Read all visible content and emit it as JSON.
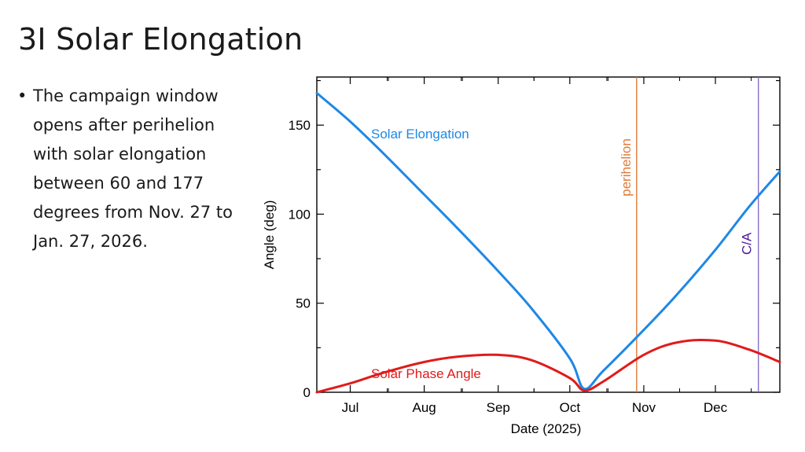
{
  "slide": {
    "title": "3I Solar Elongation",
    "bullets": [
      "The campaign window opens after perihelion with solar elongation between 60 and 177 degrees from Nov. 27 to Jan. 27, 2026."
    ]
  },
  "colors": {
    "elongation": "#1e88e5",
    "phase": "#e01b1b",
    "perihelion": "#e07b39",
    "ca": "#8a6cc9",
    "ca_label": "#4b1b9a",
    "axis": "#000000"
  },
  "chart_data": {
    "type": "line",
    "title": "",
    "xlabel": "Date (2025)",
    "ylabel": "Angle (deg)",
    "ylim": [
      0,
      177
    ],
    "xlim": [
      "2025-06-17",
      "2025-12-28"
    ],
    "x_tick_labels": [
      "Jul",
      "Aug",
      "Sep",
      "Oct",
      "Nov",
      "Dec"
    ],
    "x_tick_dates": [
      "2025-07-01",
      "2025-08-01",
      "2025-09-01",
      "2025-10-01",
      "2025-11-01",
      "2025-12-01"
    ],
    "y_ticks": [
      0,
      50,
      100,
      150
    ],
    "grid": false,
    "series": [
      {
        "name": "Solar Elongation",
        "x": [
          "2025-06-17",
          "2025-07-01",
          "2025-07-15",
          "2025-08-01",
          "2025-08-15",
          "2025-09-01",
          "2025-09-15",
          "2025-10-01",
          "2025-10-07",
          "2025-10-15",
          "2025-11-01",
          "2025-11-15",
          "2025-12-01",
          "2025-12-15",
          "2025-12-28"
        ],
        "y": [
          168,
          152,
          134,
          111,
          92,
          68,
          47,
          19,
          2,
          12,
          35,
          55,
          80,
          104,
          124
        ]
      },
      {
        "name": "Solar Phase Angle",
        "x": [
          "2025-06-17",
          "2025-07-01",
          "2025-07-15",
          "2025-08-01",
          "2025-08-15",
          "2025-09-01",
          "2025-09-15",
          "2025-10-01",
          "2025-10-07",
          "2025-10-15",
          "2025-11-01",
          "2025-11-15",
          "2025-12-01",
          "2025-12-15",
          "2025-12-28"
        ],
        "y": [
          0,
          5,
          11,
          17,
          20,
          21,
          18,
          8,
          1,
          6,
          21,
          28,
          29,
          24,
          17
        ]
      }
    ],
    "vlines": [
      {
        "label": "perihelion",
        "x": "2025-10-29"
      },
      {
        "label": "C/A",
        "x": "2025-12-19"
      }
    ]
  }
}
